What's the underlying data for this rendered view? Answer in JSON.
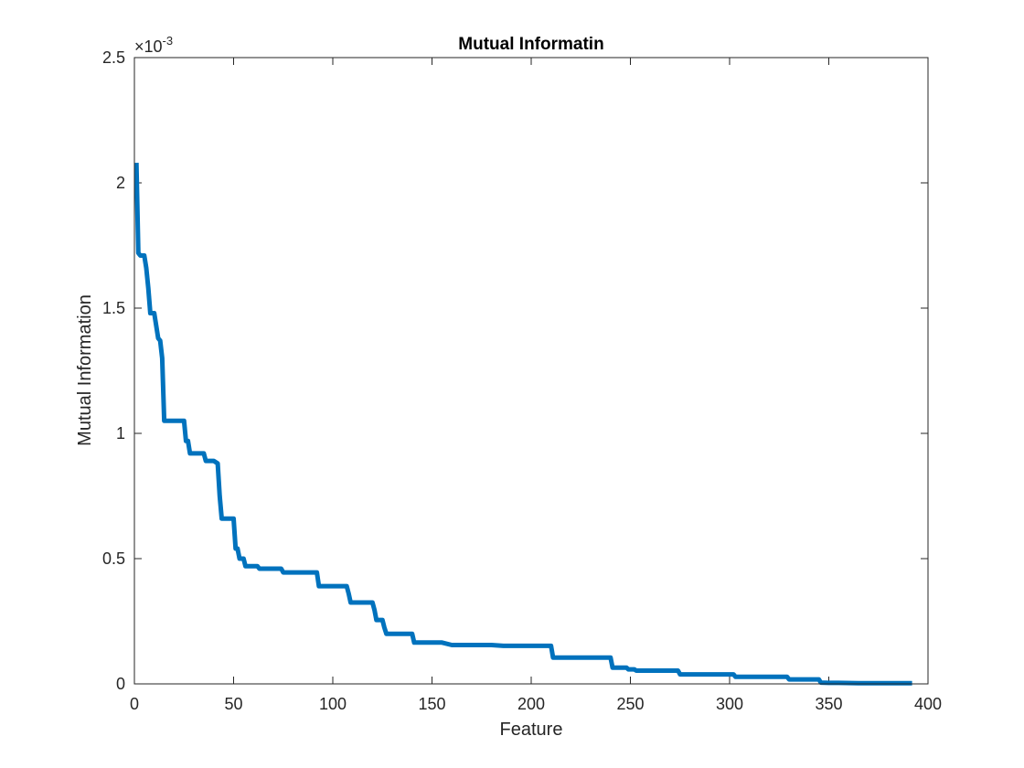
{
  "chart_data": {
    "type": "line",
    "title": "Mutual Informatin",
    "xlabel": "Feature",
    "ylabel": "Mutual Information",
    "xlim": [
      0,
      400
    ],
    "ylim": [
      0,
      0.0025
    ],
    "y_multiplier_label": "×10",
    "y_multiplier_exponent": "-3",
    "xticks": [
      0,
      50,
      100,
      150,
      200,
      250,
      300,
      350,
      400
    ],
    "xtick_labels": [
      "0",
      "50",
      "100",
      "150",
      "200",
      "250",
      "300",
      "350",
      "400"
    ],
    "yticks": [
      0,
      0.0005,
      0.001,
      0.0015,
      0.002,
      0.0025
    ],
    "ytick_labels": [
      "0",
      "0.5",
      "1",
      "1.5",
      "2",
      "2.5"
    ],
    "grid": false,
    "line_color": "#0072BD",
    "series": [
      {
        "x": [
          1,
          2,
          3,
          5,
          6,
          7,
          8,
          9,
          10,
          12,
          13,
          14,
          15,
          20,
          25,
          26,
          27,
          28,
          35,
          36,
          40,
          42,
          43,
          44,
          50,
          51,
          52,
          53,
          54,
          55,
          56,
          60,
          62,
          63,
          70,
          74,
          75,
          80,
          92,
          93,
          100,
          107,
          108,
          109,
          115,
          120,
          121,
          122,
          125,
          126,
          127,
          130,
          140,
          141,
          145,
          150,
          155,
          160,
          170,
          180,
          186,
          190,
          200,
          210,
          211,
          215,
          230,
          240,
          241,
          245,
          248,
          249,
          252,
          253,
          257,
          258,
          265,
          274,
          275,
          280,
          290,
          302,
          303,
          310,
          320,
          329,
          330,
          335,
          345,
          346,
          350,
          355,
          365,
          380,
          392
        ],
        "y": [
          0.00208,
          0.00172,
          0.00171,
          0.00171,
          0.00166,
          0.00158,
          0.00148,
          0.00148,
          0.00148,
          0.00138,
          0.00137,
          0.0013,
          0.00105,
          0.00105,
          0.00105,
          0.00097,
          0.00097,
          0.00092,
          0.00092,
          0.00089,
          0.00089,
          0.00088,
          0.00075,
          0.00066,
          0.00066,
          0.00054,
          0.00054,
          0.0005,
          0.0005,
          0.0005,
          0.00047,
          0.00047,
          0.00047,
          0.00046,
          0.00046,
          0.00046,
          0.000445,
          0.000445,
          0.000445,
          0.00039,
          0.00039,
          0.00039,
          0.00036,
          0.000325,
          0.000325,
          0.000325,
          0.000295,
          0.000255,
          0.000255,
          0.000225,
          0.0002,
          0.0002,
          0.0002,
          0.000165,
          0.000165,
          0.000165,
          0.000165,
          0.000155,
          0.000155,
          0.000155,
          0.000152,
          0.000152,
          0.000152,
          0.000152,
          0.000105,
          0.000105,
          0.000105,
          0.000105,
          6.5e-05,
          6.5e-05,
          6.5e-05,
          5.8e-05,
          5.8e-05,
          5.3e-05,
          5.3e-05,
          5.3e-05,
          5.3e-05,
          5.3e-05,
          3.8e-05,
          3.8e-05,
          3.8e-05,
          3.8e-05,
          2.8e-05,
          2.8e-05,
          2.8e-05,
          2.8e-05,
          1.8e-05,
          1.8e-05,
          1.8e-05,
          5e-06,
          4e-06,
          4e-06,
          3e-06,
          3e-06,
          3e-06
        ]
      }
    ]
  }
}
